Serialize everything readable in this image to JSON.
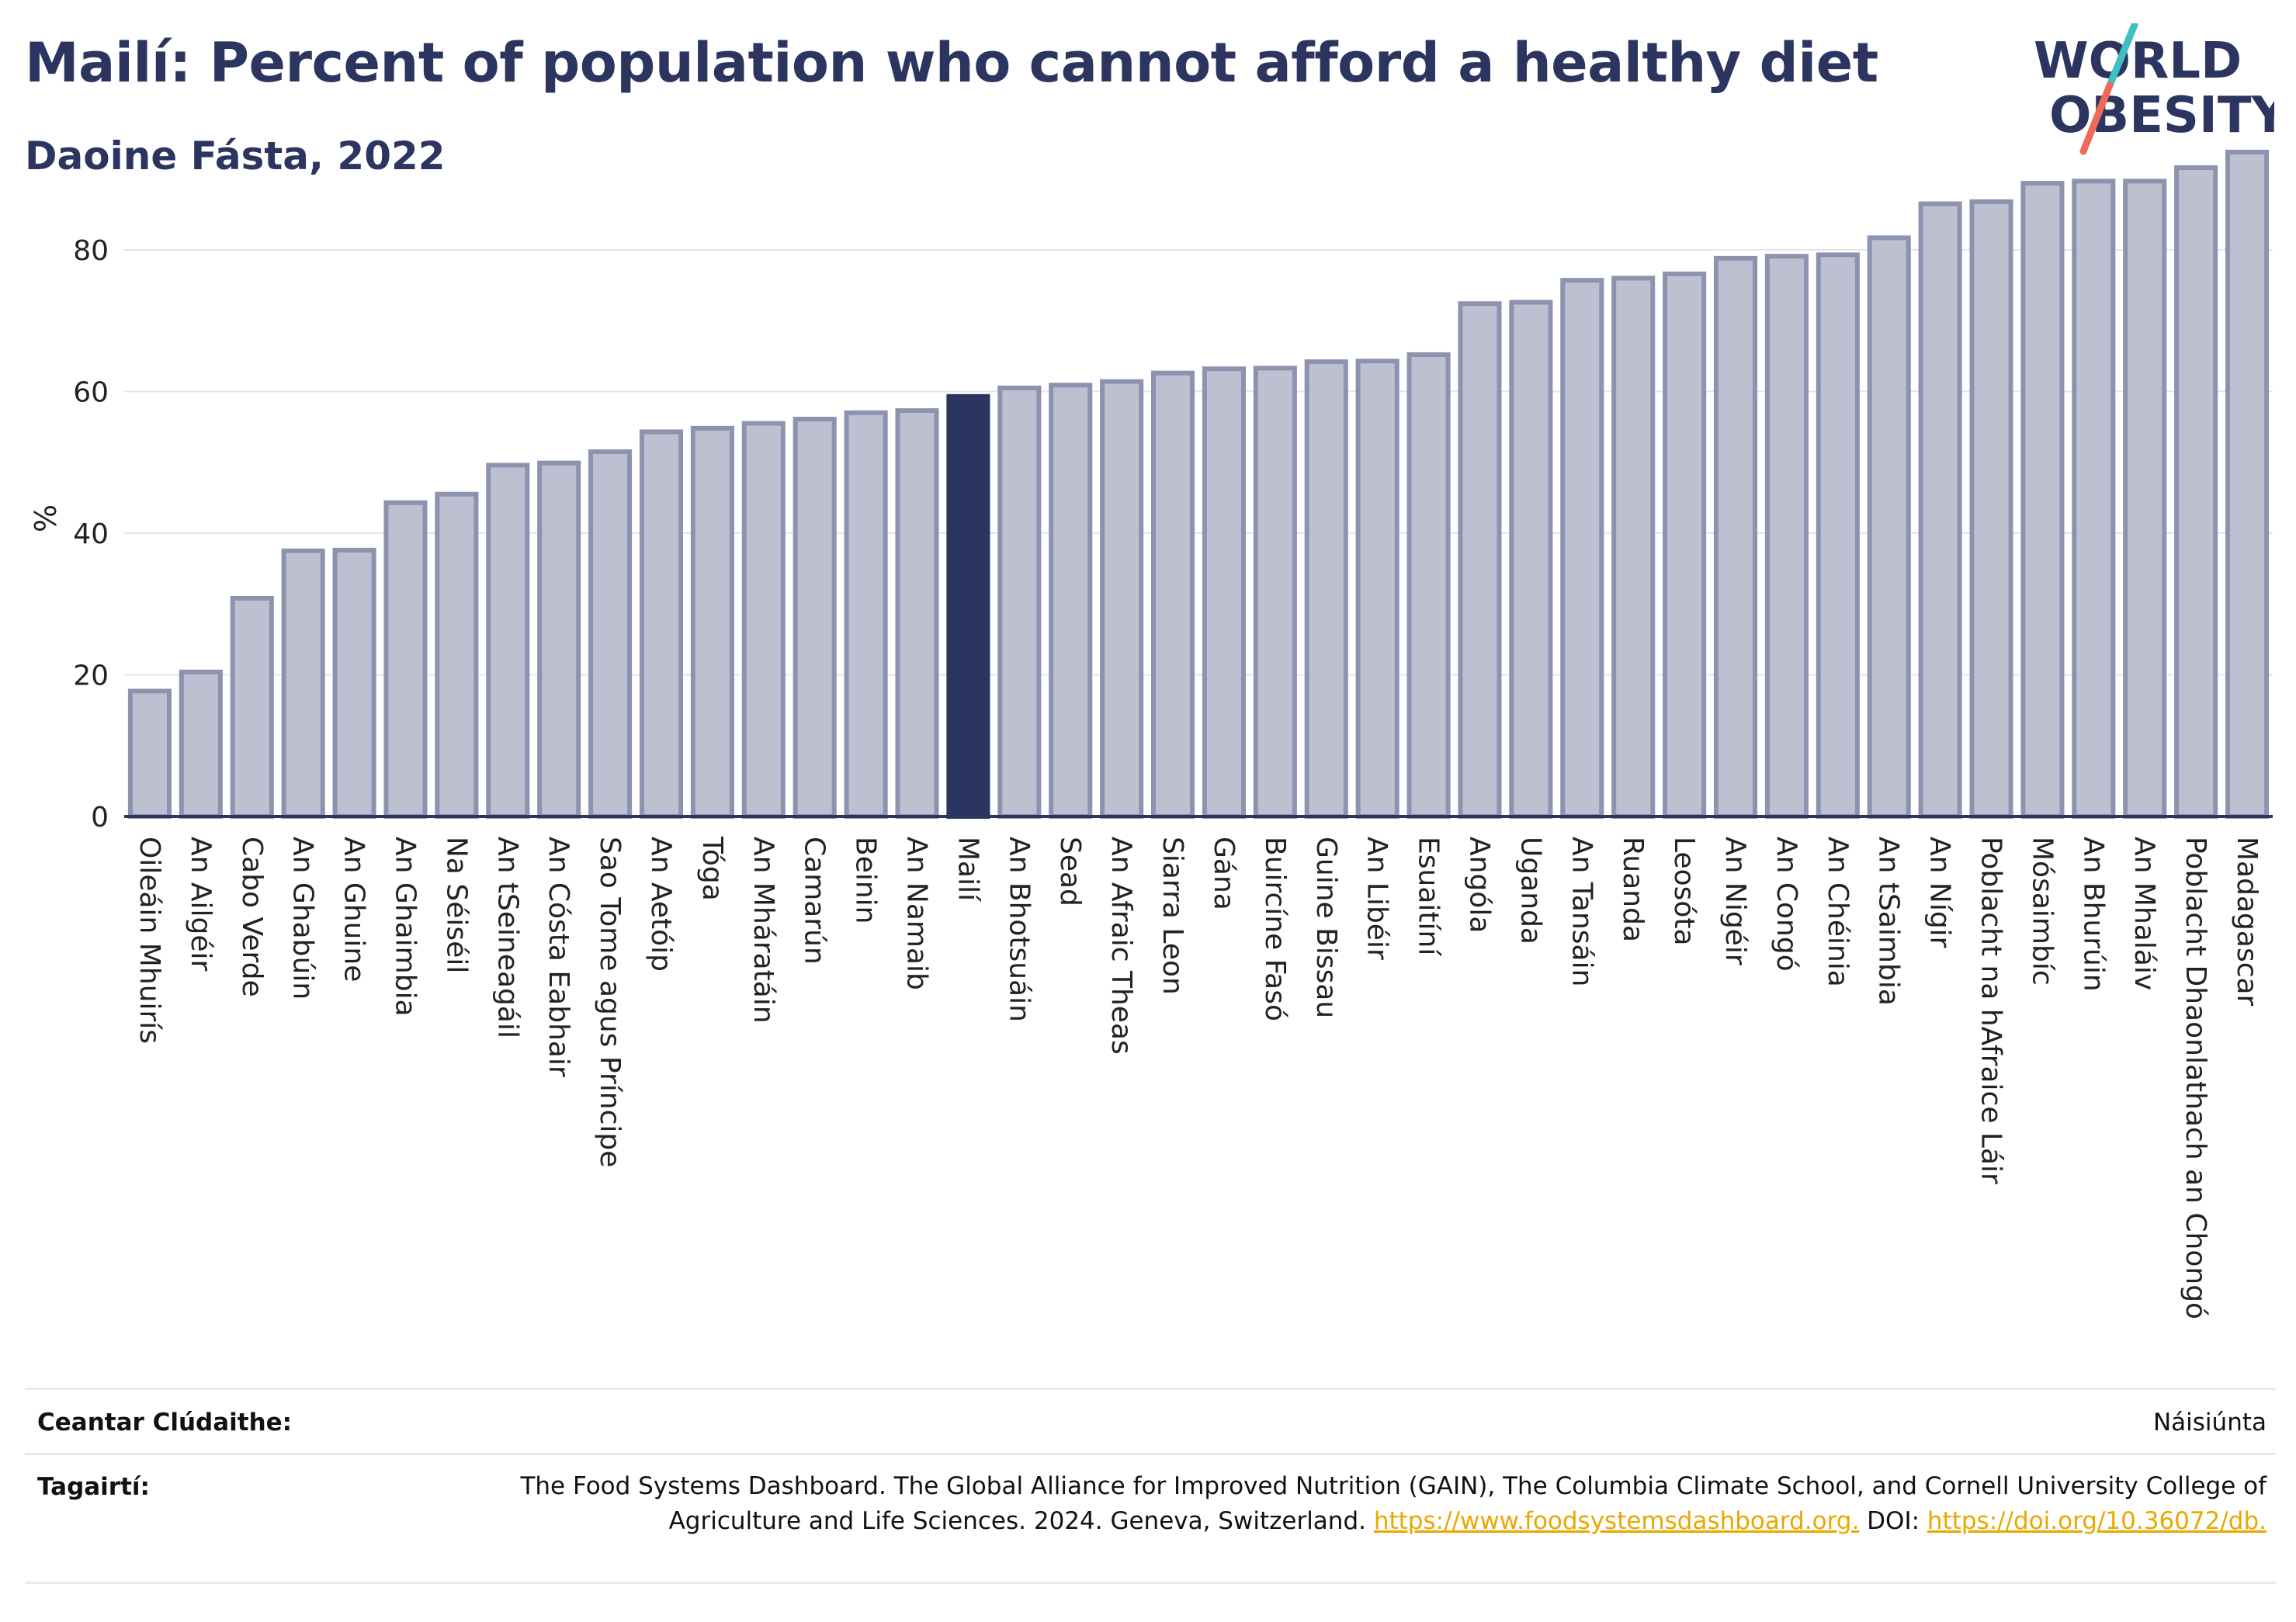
{
  "header": {
    "title": "Mailí: Percent of population who cannot afford a healthy diet",
    "subtitle": "Daoine Fásta, 2022"
  },
  "logo": {
    "line1": "WORLD",
    "line2": "OBESITY",
    "text_color": "#2b3560",
    "slash_colors": [
      "#3fbfbf",
      "#f06a5a"
    ]
  },
  "colors": {
    "bar_fill": "#bcc0d0",
    "bar_stroke": "#8d93ae",
    "highlight_fill": "#2b3560",
    "axis": "#2b3560",
    "grid": "#e4e4ea",
    "link": "#e8a800"
  },
  "chart_data": {
    "type": "bar",
    "ylabel": "%",
    "xlabel": "",
    "ylim": [
      0,
      95
    ],
    "yticks": [
      0,
      20,
      40,
      60,
      80
    ],
    "grid": true,
    "highlight": "Mailí",
    "categories": [
      "Oileáin Mhuirís",
      "An Ailgéir",
      "Cabo Verde",
      "An Ghabúin",
      "An Ghuine",
      "An Ghaimbia",
      "Na Séiséil",
      "An tSeineagáil",
      "An Cósta Eabhair",
      "Sao Tome agus Príncipe",
      "An Aetóip",
      "Tóga",
      "An Mháratáin",
      "Camarún",
      "Beinin",
      "An Namaib",
      "Mailí",
      "An Bhotsuáin",
      "Sead",
      "An Afraic Theas",
      "Siarra Leon",
      "Gána",
      "Buircíne Fasó",
      "Guine Bissau",
      "An Libéir",
      "Esuaitíní",
      "Angóla",
      "Uganda",
      "An Tansáin",
      "Ruanda",
      "Leosóta",
      "An Nigéir",
      "An Congó",
      "An Chéinia",
      "An tSaimbia",
      "An Nígir",
      "Poblacht na hAfraice Láir",
      "Mósaimbíc",
      "An Bhurúin",
      "An Mhaláiv",
      "Poblacht Dhaonlathach an Chongó",
      "Madagascar"
    ],
    "values": [
      17.7,
      20.4,
      30.8,
      37.5,
      37.6,
      44.3,
      45.5,
      49.6,
      49.9,
      51.5,
      54.3,
      54.8,
      55.5,
      56.1,
      57.0,
      57.3,
      59.3,
      60.5,
      60.9,
      61.4,
      62.6,
      63.2,
      63.3,
      64.2,
      64.3,
      65.2,
      72.4,
      72.6,
      75.7,
      76.0,
      76.6,
      78.8,
      79.1,
      79.3,
      81.7,
      86.5,
      86.8,
      89.4,
      89.7,
      89.7,
      91.6,
      93.8
    ]
  },
  "footer": {
    "coverage_label": "Ceantar Clúdaithe:",
    "coverage_value": "Náisiúnta",
    "references_label": "Tagairtí:",
    "references_text": "The Food Systems Dashboard. The Global Alliance for Improved Nutrition (GAIN), The Columbia Climate School, and Cornell University College of Agriculture and Life Sciences. 2024. Geneva, Switzerland. ",
    "references_link1": "https://www.foodsystemsdashboard.org.",
    "references_doi_label": " DOI: ",
    "references_link2": "https://doi.org/10.36072/db."
  }
}
